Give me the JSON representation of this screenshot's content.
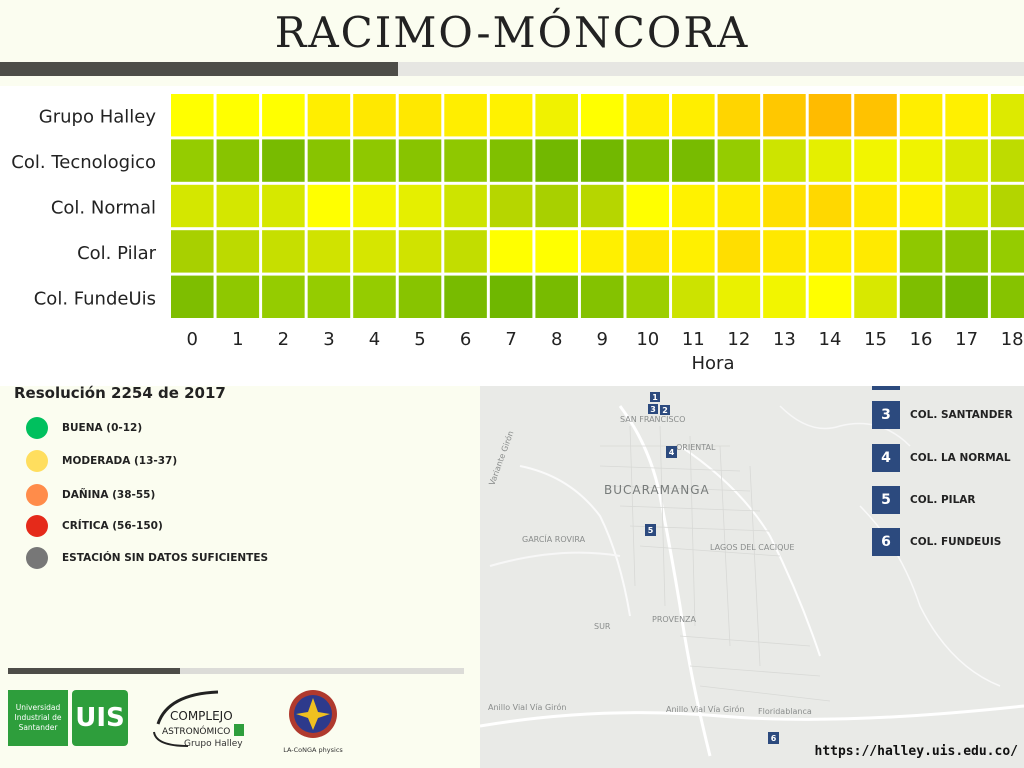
{
  "title": "RACIMO-MÓNCORA",
  "chart_data": {
    "type": "heatmap",
    "xlabel": "Hora",
    "ylabel": "",
    "x": [
      0,
      1,
      2,
      3,
      4,
      5,
      6,
      7,
      8,
      9,
      10,
      11,
      12,
      13,
      14,
      15,
      16,
      17,
      18
    ],
    "rows": [
      "Grupo Halley",
      "Col. Tecnologico",
      "Col. Normal",
      "Col. Pilar",
      "Col. FundeUis"
    ],
    "colors": [
      [
        "#ffff00",
        "#ffff00",
        "#ffff00",
        "#ffee00",
        "#ffe800",
        "#ffe800",
        "#ffee00",
        "#fff200",
        "#f0f200",
        "#ffff00",
        "#fff000",
        "#ffee00",
        "#ffd500",
        "#ffc800",
        "#ffbb00",
        "#ffc200",
        "#ffee00",
        "#fff000",
        "#ddea00"
      ],
      [
        "#95cc00",
        "#88c400",
        "#78bb00",
        "#88c400",
        "#8fc800",
        "#88c400",
        "#8fc800",
        "#80c000",
        "#72b800",
        "#72b800",
        "#80c000",
        "#78bb00",
        "#95cc00",
        "#cde400",
        "#e5ef00",
        "#f2f500",
        "#f0f300",
        "#dae900",
        "#bedc00"
      ],
      [
        "#d4e700",
        "#d4e700",
        "#d6e800",
        "#ffff00",
        "#f4f600",
        "#e5ef00",
        "#cde400",
        "#b6d600",
        "#a8d000",
        "#b6d600",
        "#ffff00",
        "#fff200",
        "#ffec00",
        "#ffe000",
        "#ffd800",
        "#ffea00",
        "#fff200",
        "#d8e800",
        "#b3d500"
      ],
      [
        "#a8d000",
        "#bcda00",
        "#c6df00",
        "#d0e300",
        "#d6e600",
        "#d0e300",
        "#c2dd00",
        "#ffff00",
        "#ffff00",
        "#fff000",
        "#ffe800",
        "#fff000",
        "#ffde00",
        "#ffe800",
        "#ffee00",
        "#ffea00",
        "#8fc800",
        "#8cc500",
        "#95cc00"
      ],
      [
        "#7ebe00",
        "#8fc800",
        "#95cc00",
        "#95cc00",
        "#95cc00",
        "#88c400",
        "#78bb00",
        "#6fb700",
        "#78bb00",
        "#84c200",
        "#9ccf00",
        "#cce300",
        "#eaf100",
        "#f2f500",
        "#ffff00",
        "#d8e800",
        "#7ebe00",
        "#72b800",
        "#86c300"
      ]
    ]
  },
  "legend": {
    "title": "Resolución 2254 de 2017",
    "items": [
      {
        "label": "BUENA (0-12)",
        "color": "#00c05e"
      },
      {
        "label": "MODERADA (13-37)",
        "color": "#ffde5e"
      },
      {
        "label": "DAÑINA (38-55)",
        "color": "#ff8c4a"
      },
      {
        "label": "CRÍTICA (56-150)",
        "color": "#e52a1a"
      },
      {
        "label": "ESTACIÓN SIN DATOS SUFICIENTES",
        "color": "#777777"
      }
    ]
  },
  "logos": {
    "uis_text": "Universidad Industrial de Santander",
    "uis_mark": "UIS",
    "complejo": "COMPLEJO ASTRONÓMICO UIS",
    "halley": "Grupo Halley",
    "conga": "LA-CoNGA physics"
  },
  "map": {
    "labels": {
      "san_francisco": "SAN FRANCISCO",
      "bucaramanga": "BUCARAMANGA",
      "garcia_rovira": "GARCÍA ROVIRA",
      "lagos": "LAGOS DEL CACIQUE",
      "provenza": "PROVENZA",
      "sur": "SUR",
      "oriental": "ORIENTAL",
      "floridablanca": "Floridablanca",
      "via_girón": "Anillo Vial Vía Girón",
      "via_girón_2": "Anillo Vial Vía Girón",
      "variante": "Variante Girón"
    },
    "pins": [
      "1",
      "3",
      "2",
      "4",
      "5",
      "6"
    ],
    "legend": [
      {
        "num": "3",
        "label": "COL. SANTANDER"
      },
      {
        "num": "4",
        "label": "COL. LA NORMAL"
      },
      {
        "num": "5",
        "label": "COL. PILAR"
      },
      {
        "num": "6",
        "label": "COL. FUNDEUIS"
      }
    ]
  },
  "url": "https://halley.uis.edu.co/"
}
